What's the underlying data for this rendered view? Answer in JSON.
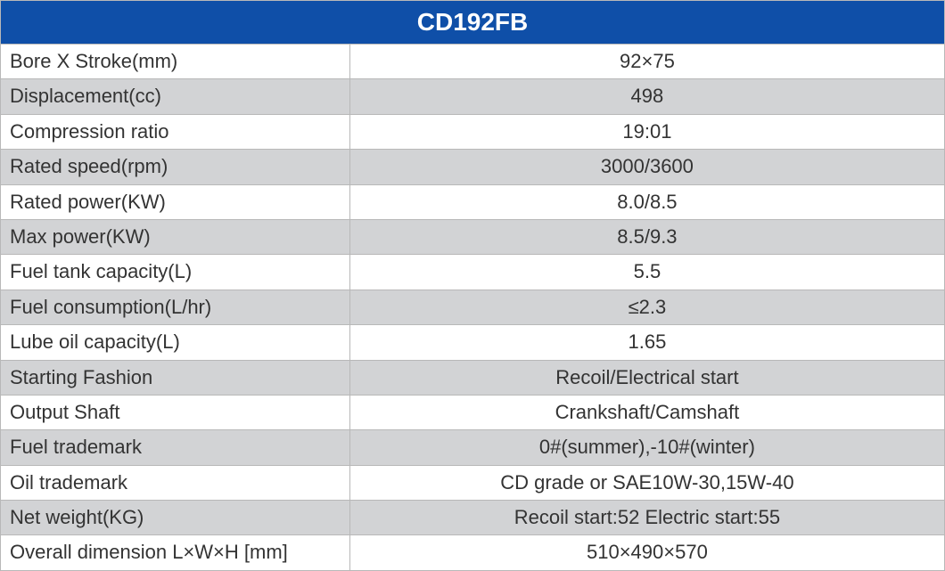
{
  "table": {
    "title": "CD192FB",
    "header_bg": "#0f4fa8",
    "header_fg": "#ffffff",
    "row_alt_bg": "#d2d3d5",
    "row_bg": "#ffffff",
    "border_color": "#b8b8b8",
    "text_color": "#333333",
    "title_fontsize": 28,
    "cell_fontsize": 22,
    "label_col_width_pct": 37,
    "value_col_width_pct": 63,
    "rows": [
      {
        "label": "Bore X Stroke(mm)",
        "value": "92×75"
      },
      {
        "label": "Displacement(cc)",
        "value": "498"
      },
      {
        "label": "Compression ratio",
        "value": "19:01"
      },
      {
        "label": "Rated speed(rpm)",
        "value": "3000/3600"
      },
      {
        "label": "Rated power(KW)",
        "value": "8.0/8.5"
      },
      {
        "label": "Max power(KW)",
        "value": "8.5/9.3"
      },
      {
        "label": "Fuel tank capacity(L)",
        "value": "5.5"
      },
      {
        "label": "Fuel consumption(L/hr)",
        "value": "≤2.3"
      },
      {
        "label": "Lube oil capacity(L)",
        "value": "1.65"
      },
      {
        "label": "Starting Fashion",
        "value": "Recoil/Electrical start"
      },
      {
        "label": "Output Shaft",
        "value": "Crankshaft/Camshaft"
      },
      {
        "label": "Fuel trademark",
        "value": "0#(summer),-10#(winter)"
      },
      {
        "label": "Oil trademark",
        "value": "CD grade or SAE10W-30,15W-40"
      },
      {
        "label": "Net weight(KG)",
        "value": "Recoil start:52  Electric start:55"
      },
      {
        "label": "Overall dimension L×W×H [mm]",
        "value": "510×490×570"
      }
    ]
  }
}
